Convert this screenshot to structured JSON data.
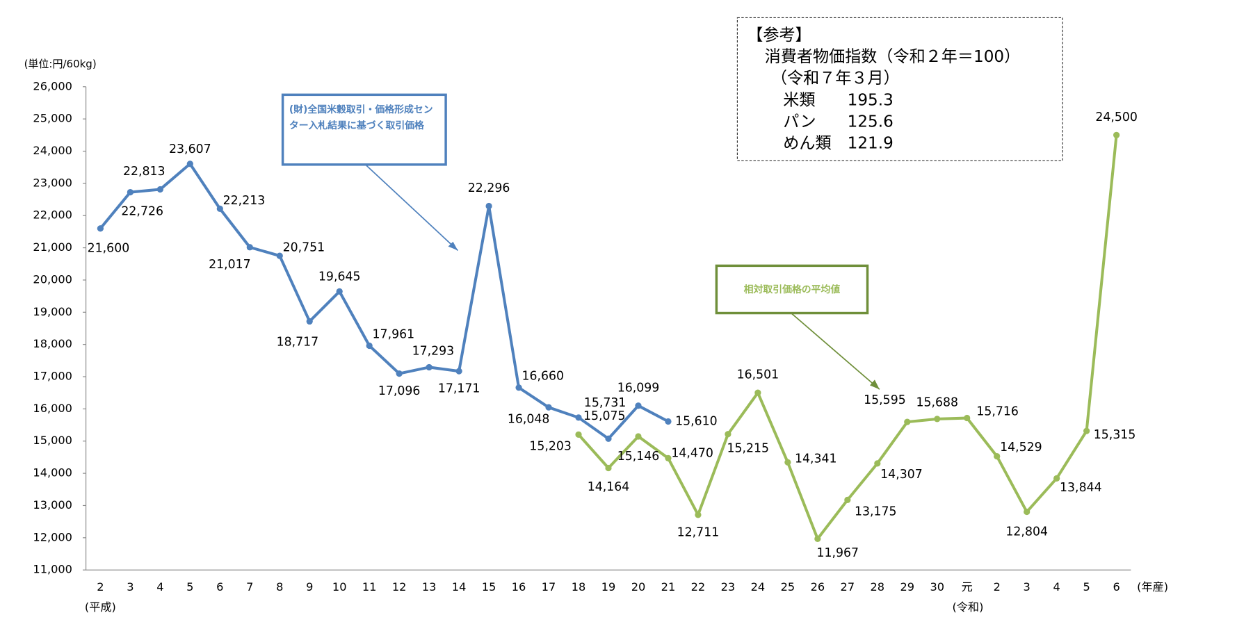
{
  "chart_data": {
    "type": "line",
    "y_axis_label": "(単位:円/60kg)",
    "x_axis_label": "(年産)",
    "era_labels": [
      "(平成)",
      "(令和)"
    ],
    "categories": [
      "2",
      "3",
      "4",
      "5",
      "6",
      "7",
      "8",
      "9",
      "10",
      "11",
      "12",
      "13",
      "14",
      "15",
      "16",
      "17",
      "18",
      "19",
      "20",
      "21",
      "22",
      "23",
      "24",
      "25",
      "26",
      "27",
      "28",
      "29",
      "30",
      "元",
      "2",
      "3",
      "4",
      "5",
      "6"
    ],
    "series": [
      {
        "name": "(財)全国米穀取引・価格形成センター入札結果に基づく取引価格",
        "color": "#4f81bd",
        "values": [
          21600,
          22726,
          22813,
          23607,
          22213,
          21017,
          20751,
          18717,
          19645,
          17961,
          17096,
          17293,
          17171,
          22296,
          16660,
          16048,
          15731,
          15075,
          16099,
          15610,
          null,
          null,
          null,
          null,
          null,
          null,
          null,
          null,
          null,
          null,
          null,
          null,
          null,
          null,
          null
        ],
        "value_labels": [
          "21,600",
          "22,726",
          "22,813",
          "23,607",
          "22,213",
          "21,017",
          "20,751",
          "18,717",
          "19,645",
          "17,961",
          "17,096",
          "17,293",
          "17,171",
          "22,296",
          "16,660",
          "16,048",
          "15,731",
          "15,075",
          "16,099",
          "15,610",
          null,
          null,
          null,
          null,
          null,
          null,
          null,
          null,
          null,
          null,
          null,
          null,
          null,
          null,
          null
        ]
      },
      {
        "name": "相対取引価格の平均値",
        "color": "#9bbb59",
        "values": [
          null,
          null,
          null,
          null,
          null,
          null,
          null,
          null,
          null,
          null,
          null,
          null,
          null,
          null,
          null,
          null,
          15203,
          14164,
          15146,
          14470,
          12711,
          15215,
          16501,
          14341,
          11967,
          13175,
          14307,
          15595,
          15688,
          15716,
          14529,
          12804,
          13844,
          15315,
          24500
        ],
        "value_labels": [
          null,
          null,
          null,
          null,
          null,
          null,
          null,
          null,
          null,
          null,
          null,
          null,
          null,
          null,
          null,
          null,
          "15,203",
          "14,164",
          "15,146",
          "14,470",
          "12,711",
          "15,215",
          "16,501",
          "14,341",
          "11,967",
          "13,175",
          "14,307",
          "15,595",
          "15,688",
          "15,716",
          "14,529",
          "12,804",
          "13,844",
          "15,315",
          "24,500"
        ]
      }
    ],
    "ylim": [
      11000,
      26000
    ],
    "yticks": [
      {
        "value": 11000,
        "label": "11,000"
      },
      {
        "value": 12000,
        "label": "12,000"
      },
      {
        "value": 13000,
        "label": "13,000"
      },
      {
        "value": 14000,
        "label": "14,000"
      },
      {
        "value": 15000,
        "label": "15,000"
      },
      {
        "value": 16000,
        "label": "16,000"
      },
      {
        "value": 17000,
        "label": "17,000"
      },
      {
        "value": 18000,
        "label": "18,000"
      },
      {
        "value": 19000,
        "label": "19,000"
      },
      {
        "value": 20000,
        "label": "20,000"
      },
      {
        "value": 21000,
        "label": "21,000"
      },
      {
        "value": 22000,
        "label": "22,000"
      },
      {
        "value": 23000,
        "label": "23,000"
      },
      {
        "value": 24000,
        "label": "24,000"
      },
      {
        "value": 25000,
        "label": "25,000"
      },
      {
        "value": 26000,
        "label": "26,000"
      }
    ],
    "grid": false
  },
  "reference": {
    "title": "【参考】",
    "subtitle": "消費者物価指数（令和２年＝100）",
    "date": "（令和７年３月）",
    "rows": [
      [
        "米類",
        195.3
      ],
      [
        "パン",
        125.6
      ],
      [
        "めん類",
        121.9
      ]
    ]
  }
}
